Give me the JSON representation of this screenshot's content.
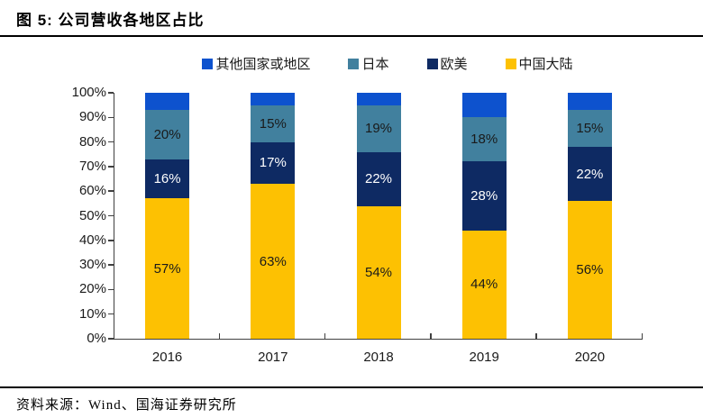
{
  "figure": {
    "title": "图 5: 公司营收各地区占比",
    "source": "资料来源：Wind、国海证券研究所"
  },
  "chart_data": {
    "type": "bar",
    "stacked": true,
    "title": "公司营收各地区占比",
    "categories": [
      "2016",
      "2017",
      "2018",
      "2019",
      "2020"
    ],
    "series": [
      {
        "name": "中国大陆",
        "color": "#FDC102",
        "label_color": "#1a1a1a",
        "show_labels": true,
        "values": [
          57,
          63,
          54,
          44,
          56
        ]
      },
      {
        "name": "欧美",
        "color": "#0E2A63",
        "label_color": "#ffffff",
        "show_labels": true,
        "values": [
          16,
          17,
          22,
          28,
          22
        ]
      },
      {
        "name": "日本",
        "color": "#41809E",
        "label_color": "#1a1a1a",
        "show_labels": true,
        "values": [
          20,
          15,
          19,
          18,
          15
        ]
      },
      {
        "name": "其他国家或地区",
        "color": "#0D52CE",
        "label_color": "#ffffff",
        "show_labels": false,
        "values": [
          7,
          5,
          5,
          10,
          7
        ]
      }
    ],
    "legend": [
      "其他国家或地区",
      "日本",
      "欧美",
      "中国大陆"
    ],
    "legend_position": "top",
    "ylim": [
      0,
      100
    ],
    "y_ticks": [
      "100%",
      "90%",
      "80%",
      "70%",
      "60%",
      "50%",
      "40%",
      "30%",
      "20%",
      "10%",
      "0%"
    ],
    "value_suffix": "%",
    "grid": false
  }
}
